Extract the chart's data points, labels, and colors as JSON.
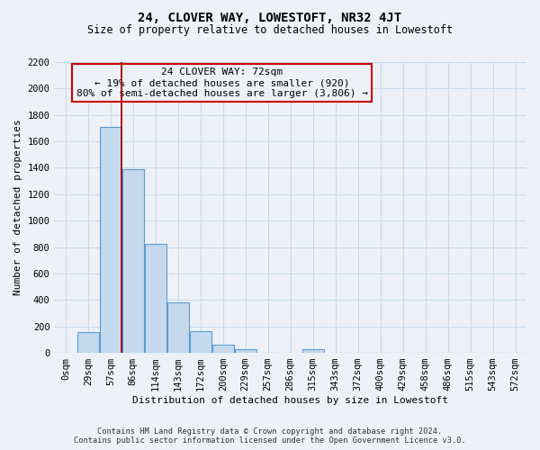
{
  "title": "24, CLOVER WAY, LOWESTOFT, NR32 4JT",
  "subtitle": "Size of property relative to detached houses in Lowestoft",
  "xlabel": "Distribution of detached houses by size in Lowestoft",
  "ylabel": "Number of detached properties",
  "bar_labels": [
    "0sqm",
    "29sqm",
    "57sqm",
    "86sqm",
    "114sqm",
    "143sqm",
    "172sqm",
    "200sqm",
    "229sqm",
    "257sqm",
    "286sqm",
    "315sqm",
    "343sqm",
    "372sqm",
    "400sqm",
    "429sqm",
    "458sqm",
    "486sqm",
    "515sqm",
    "543sqm",
    "572sqm"
  ],
  "bar_values": [
    0,
    155,
    1710,
    1390,
    825,
    385,
    165,
    65,
    30,
    0,
    0,
    25,
    0,
    0,
    0,
    0,
    0,
    0,
    0,
    0,
    0
  ],
  "bar_color": "#c5d9ee",
  "bar_edge_color": "#5b9bd5",
  "vline_color": "#aa0000",
  "vline_x_idx": 2.5,
  "annotation_line1": "24 CLOVER WAY: 72sqm",
  "annotation_line2": "← 19% of detached houses are smaller (920)",
  "annotation_line3": "80% of semi-detached houses are larger (3,806) →",
  "annotation_box_color": "#cc0000",
  "ylim": [
    0,
    2200
  ],
  "yticks": [
    0,
    200,
    400,
    600,
    800,
    1000,
    1200,
    1400,
    1600,
    1800,
    2000,
    2200
  ],
  "grid_color": "#c8d8ea",
  "footer_line1": "Contains HM Land Registry data © Crown copyright and database right 2024.",
  "footer_line2": "Contains public sector information licensed under the Open Government Licence v3.0.",
  "bg_color": "#eef2f8",
  "title_fontsize": 10,
  "subtitle_fontsize": 8.5,
  "axis_label_fontsize": 8,
  "tick_fontsize": 7.5,
  "footer_fontsize": 6.2
}
